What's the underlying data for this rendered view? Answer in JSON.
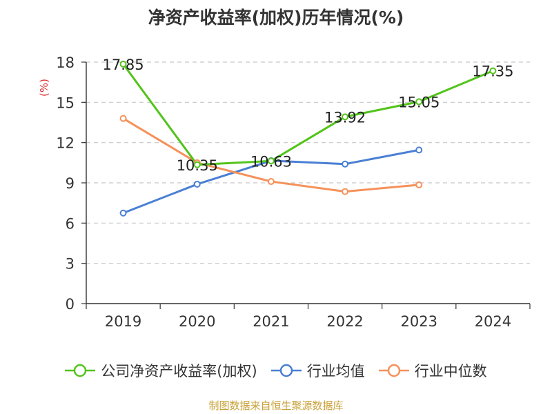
{
  "chart_data": {
    "type": "line",
    "title": "净资产收益率(加权)历年情况(%)",
    "ylabel": "(%)",
    "xlabel": "",
    "ylim": [
      0,
      18
    ],
    "yticks": [
      0,
      3,
      6,
      9,
      12,
      15,
      18
    ],
    "categories": [
      "2019",
      "2020",
      "2021",
      "2022",
      "2023",
      "2024"
    ],
    "grid": true,
    "legend_position": "bottom",
    "series": [
      {
        "name": "公司净资产收益率(加权)",
        "color": "#52c41a",
        "values": [
          17.85,
          10.35,
          10.63,
          13.92,
          15.05,
          17.35
        ],
        "labels": [
          "17.85",
          "10.35",
          "10.63",
          "13.92",
          "15.05",
          "17.35"
        ]
      },
      {
        "name": "行业均值",
        "color": "#4a7fd4",
        "values": [
          6.75,
          8.9,
          10.65,
          10.4,
          11.45,
          null
        ]
      },
      {
        "name": "行业中位数",
        "color": "#f5915a",
        "values": [
          13.8,
          10.5,
          9.1,
          8.35,
          8.85,
          null
        ]
      }
    ]
  },
  "source": {
    "text": "制图数据来自恒生聚源数据库",
    "color": "#c9a23a"
  },
  "ylabel_color": "#e03030"
}
